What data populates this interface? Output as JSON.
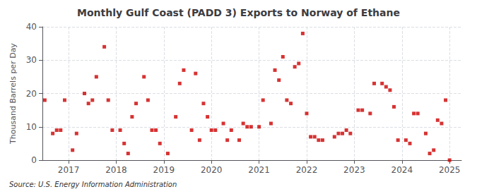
{
  "chart_data": {
    "type": "scatter",
    "title": "Monthly Gulf Coast (PADD 3) Exports to Norway of Ethane",
    "y_label": "Thousand Barrels per Day",
    "annotation": "Source: U.S. Energy Information Administration",
    "x": [
      2016.5,
      2016.667,
      2016.75,
      2016.833,
      2016.917,
      2017.083,
      2017.167,
      2017.333,
      2017.417,
      2017.5,
      2017.583,
      2017.75,
      2017.833,
      2017.917,
      2018.083,
      2018.167,
      2018.25,
      2018.333,
      2018.417,
      2018.583,
      2018.667,
      2018.75,
      2018.833,
      2018.917,
      2019.083,
      2019.25,
      2019.333,
      2019.417,
      2019.583,
      2019.667,
      2019.75,
      2019.833,
      2019.917,
      2020.0,
      2020.083,
      2020.25,
      2020.333,
      2020.417,
      2020.583,
      2020.667,
      2020.75,
      2020.833,
      2021.0,
      2021.083,
      2021.25,
      2021.333,
      2021.417,
      2021.5,
      2021.583,
      2021.667,
      2021.75,
      2021.833,
      2021.917,
      2022.0,
      2022.083,
      2022.167,
      2022.25,
      2022.333,
      2022.583,
      2022.667,
      2022.75,
      2022.833,
      2022.917,
      2023.083,
      2023.167,
      2023.333,
      2023.417,
      2023.583,
      2023.667,
      2023.75,
      2023.833,
      2023.917,
      2024.083,
      2024.167,
      2024.25,
      2024.333,
      2024.5,
      2024.583,
      2024.667,
      2024.75,
      2024.833,
      2024.917,
      2025.0
    ],
    "values": [
      18,
      8,
      9,
      9,
      18,
      3,
      8,
      20,
      17,
      18,
      25,
      34,
      18,
      9,
      9,
      5,
      2,
      13,
      17,
      25,
      18,
      9,
      9,
      5,
      2,
      13,
      23,
      27,
      9,
      26,
      6,
      17,
      13,
      9,
      9,
      11,
      6,
      9,
      6,
      11,
      10,
      10,
      10,
      18,
      11,
      27,
      24,
      31,
      18,
      17,
      28,
      29,
      38,
      14,
      7,
      7,
      6,
      6,
      7,
      8,
      8,
      9,
      8,
      15,
      15,
      14,
      23,
      23,
      22,
      21,
      16,
      6,
      6,
      5,
      14,
      14,
      8,
      2,
      3,
      12,
      11,
      18,
      0
    ],
    "color": "#cc0000",
    "marker": "square",
    "xlim": [
      2016.45,
      2025.25
    ],
    "xticks": [
      2017,
      2018,
      2019,
      2020,
      2021,
      2022,
      2023,
      2024,
      2025
    ],
    "ylim": [
      0,
      40
    ],
    "yticks": [
      0,
      10,
      20,
      30,
      40
    ],
    "grid": true
  }
}
